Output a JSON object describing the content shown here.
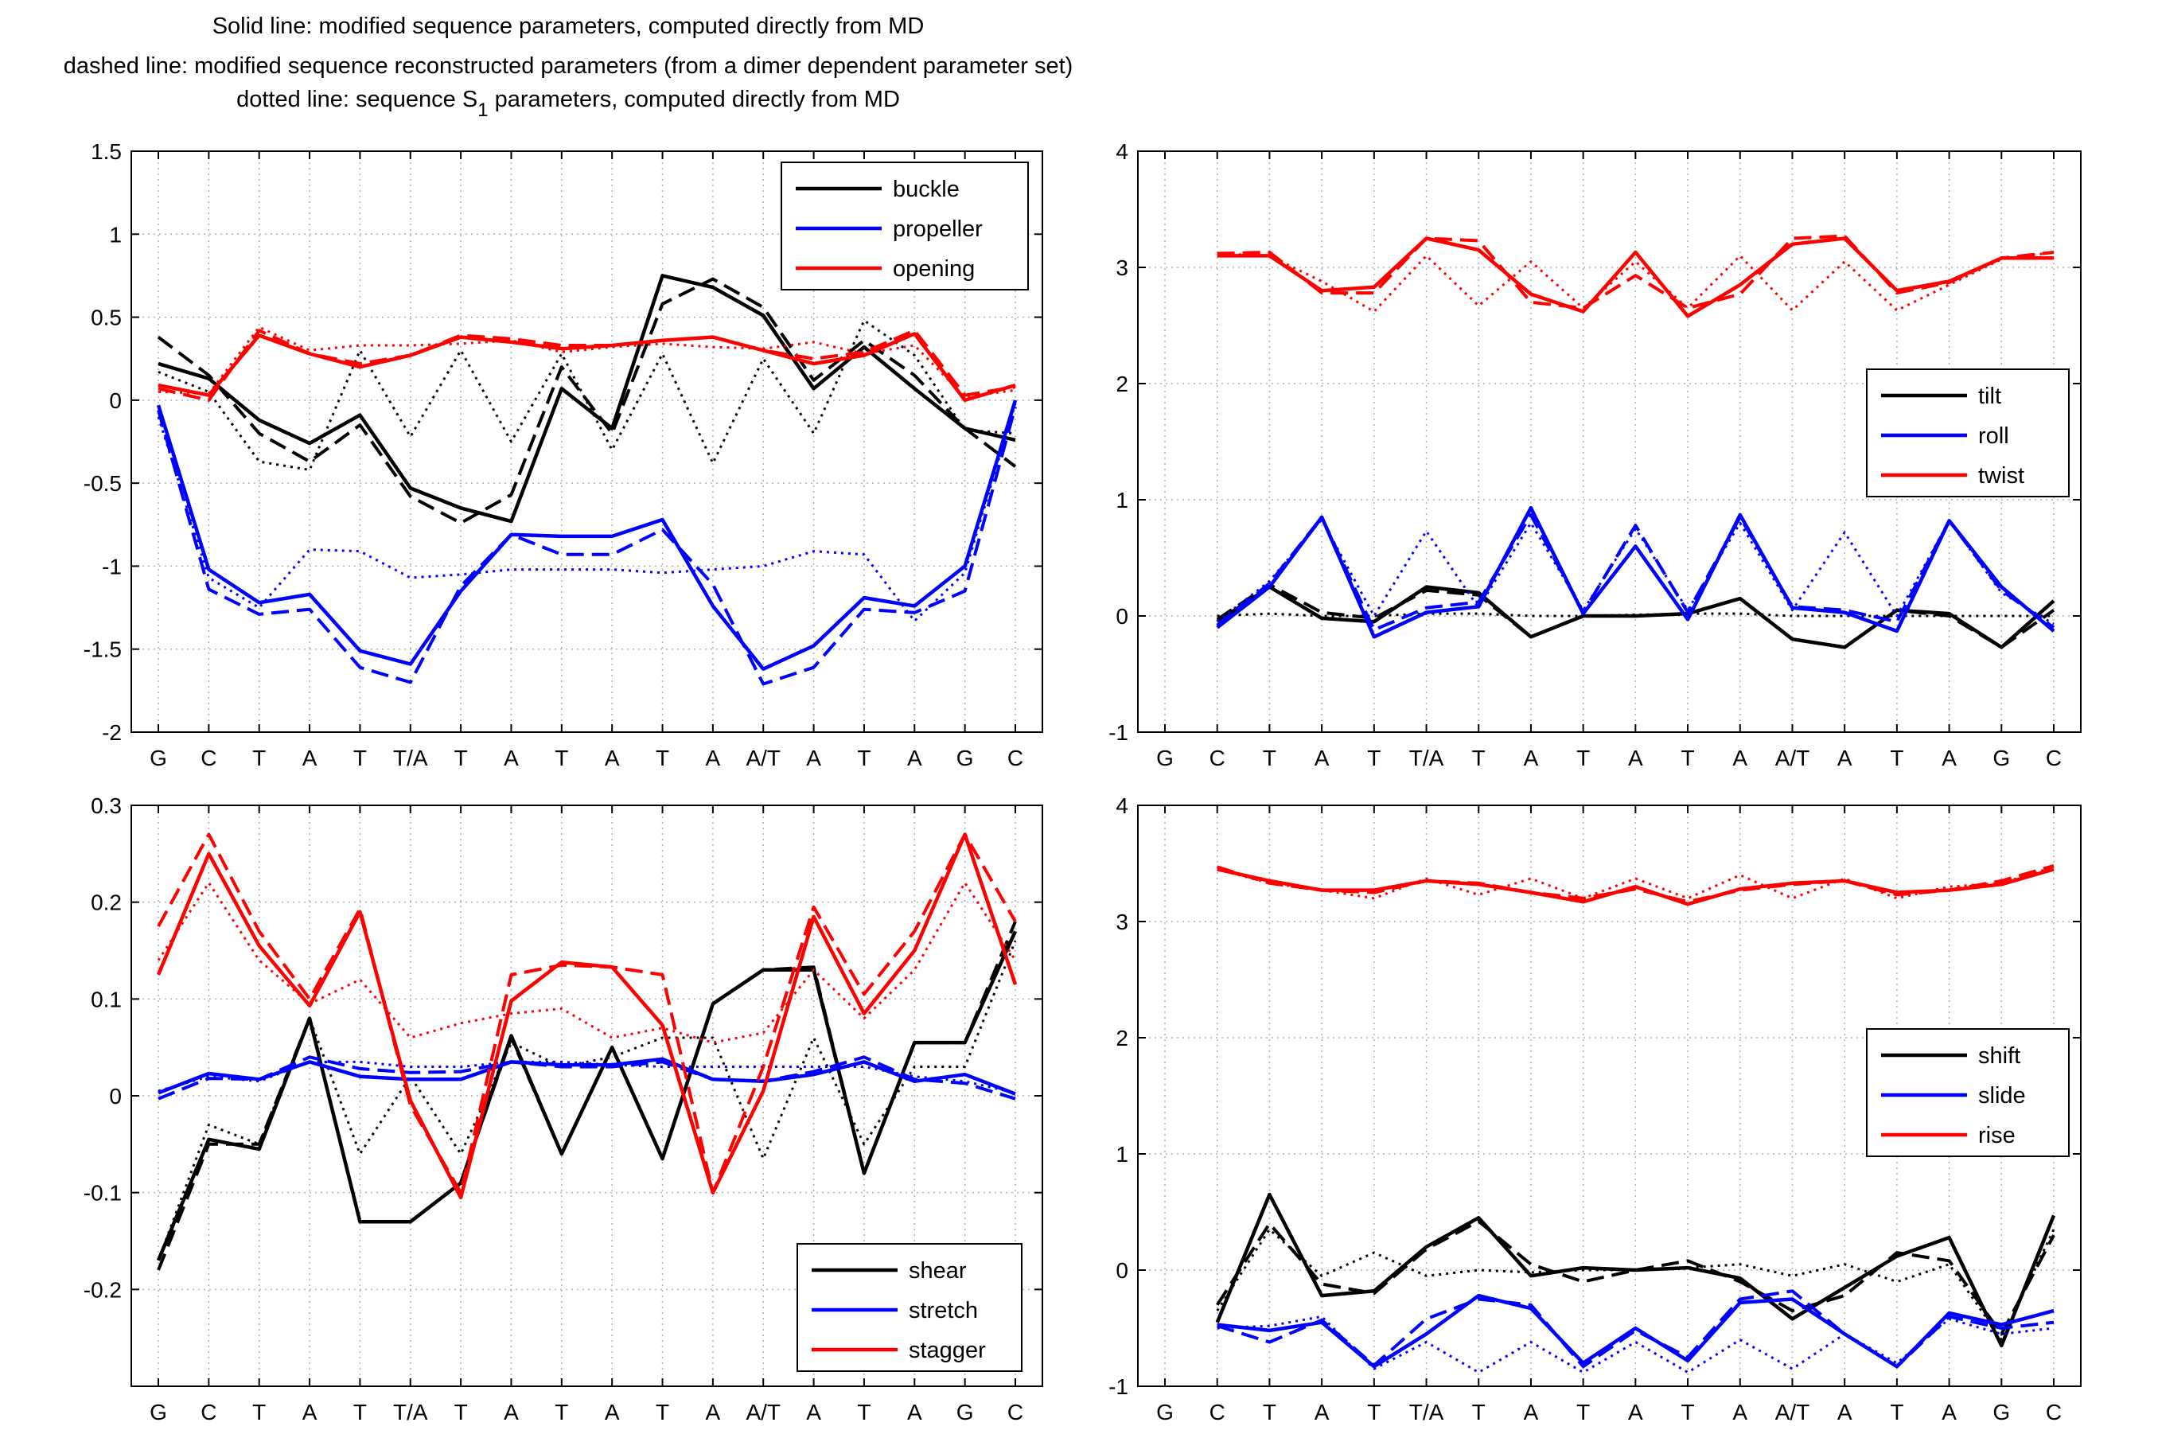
{
  "figure": {
    "title_lines": [
      "Solid line: modified sequence parameters, computed directly from MD",
      "dashed line: modified sequence reconstructed parameters (from a dimer dependent parameter set)"
    ],
    "title_line3": {
      "before": "dotted line: sequence S",
      "subscript": "1",
      "after": " parameters, computed directly from MD"
    },
    "line_styles": {
      "solid": "solid",
      "dashed": "dashed",
      "dotted": "dotted"
    }
  },
  "chart_data": [
    {
      "id": "p1",
      "type": "line",
      "categories": [
        "G",
        "C",
        "T",
        "A",
        "T",
        "T/A",
        "T",
        "A",
        "T",
        "A",
        "T",
        "A",
        "A/T",
        "A",
        "T",
        "A",
        "G",
        "C"
      ],
      "ylim": [
        -2,
        1.5
      ],
      "yticks": [
        -2,
        -1.5,
        -1,
        -0.5,
        0,
        0.5,
        1,
        1.5
      ],
      "ytick_labels": [
        "-2",
        "-1.5",
        "-1",
        "-0.5",
        "0",
        "0.5",
        "1",
        "1.5"
      ],
      "grid": true,
      "legend": "top-right",
      "series": [
        {
          "name": "buckle",
          "color": "#000000",
          "solid": [
            0.22,
            0.13,
            -0.12,
            -0.26,
            -0.09,
            -0.53,
            -0.65,
            -0.73,
            0.07,
            -0.17,
            0.75,
            0.68,
            0.51,
            0.07,
            0.32,
            0.07,
            -0.17,
            -0.24
          ],
          "dashed": [
            0.38,
            0.15,
            -0.2,
            -0.37,
            -0.15,
            -0.58,
            -0.74,
            -0.57,
            0.2,
            -0.2,
            0.58,
            0.73,
            0.56,
            0.12,
            0.36,
            0.15,
            -0.17,
            -0.4
          ],
          "dotted": [
            0.17,
            0.05,
            -0.37,
            -0.42,
            0.3,
            -0.22,
            0.3,
            -0.25,
            0.28,
            -0.3,
            0.28,
            -0.38,
            0.25,
            -0.2,
            0.48,
            0.27,
            -0.18,
            -0.2
          ]
        },
        {
          "name": "propeller",
          "color": "#0000ff",
          "solid": [
            -0.03,
            -1.02,
            -1.22,
            -1.17,
            -1.51,
            -1.59,
            -1.15,
            -0.81,
            -0.82,
            -0.82,
            -0.72,
            -1.24,
            -1.62,
            -1.48,
            -1.19,
            -1.24,
            -1.0,
            0.0
          ],
          "dashed": [
            -0.06,
            -1.14,
            -1.29,
            -1.26,
            -1.61,
            -1.7,
            -1.12,
            -0.81,
            -0.93,
            -0.93,
            -0.78,
            -1.11,
            -1.71,
            -1.61,
            -1.26,
            -1.28,
            -1.15,
            -0.04
          ],
          "dotted": [
            -0.1,
            -1.07,
            -1.25,
            -0.9,
            -0.91,
            -1.07,
            -1.05,
            -1.02,
            -1.02,
            -1.02,
            -1.04,
            -1.02,
            -1.0,
            -0.91,
            -0.93,
            -1.33,
            -1.04,
            -0.02
          ]
        },
        {
          "name": "opening",
          "color": "#ff0000",
          "solid": [
            0.09,
            0.03,
            0.39,
            0.28,
            0.2,
            0.27,
            0.38,
            0.35,
            0.31,
            0.33,
            0.36,
            0.38,
            0.3,
            0.22,
            0.27,
            0.4,
            0.0,
            0.09
          ],
          "dashed": [
            0.07,
            0.0,
            0.42,
            0.28,
            0.22,
            0.27,
            0.39,
            0.37,
            0.33,
            0.33,
            0.36,
            0.38,
            0.3,
            0.25,
            0.29,
            0.42,
            0.03,
            0.08
          ],
          "dotted": [
            0.05,
            0.04,
            0.44,
            0.3,
            0.33,
            0.33,
            0.34,
            0.36,
            0.29,
            0.32,
            0.34,
            0.32,
            0.31,
            0.35,
            0.28,
            0.33,
            0.02,
            0.06
          ]
        }
      ]
    },
    {
      "id": "p2",
      "type": "line",
      "categories": [
        "G",
        "C",
        "T",
        "A",
        "T",
        "T/A",
        "T",
        "A",
        "T",
        "A",
        "T",
        "A",
        "A/T",
        "A",
        "T",
        "A",
        "G",
        "C"
      ],
      "ylim": [
        -1,
        4
      ],
      "yticks": [
        -1,
        0,
        1,
        2,
        3,
        4
      ],
      "ytick_labels": [
        "-1",
        "0",
        "1",
        "2",
        "3",
        "4"
      ],
      "grid": true,
      "legend": "middle-right",
      "series": [
        {
          "name": "tilt",
          "color": "#000000",
          "solid": [
            null,
            -0.05,
            0.25,
            -0.02,
            -0.05,
            0.25,
            0.2,
            -0.18,
            0.0,
            0.0,
            0.02,
            0.15,
            -0.2,
            -0.27,
            0.05,
            0.02,
            -0.27,
            0.13
          ],
          "dashed": [
            null,
            -0.03,
            0.27,
            0.03,
            -0.02,
            0.22,
            0.18,
            -0.18,
            0.0,
            0.0,
            0.02,
            0.15,
            -0.2,
            -0.27,
            0.05,
            0.0,
            -0.27,
            0.05
          ],
          "dotted": [
            null,
            0.0,
            0.02,
            0.0,
            0.0,
            0.02,
            0.02,
            0.0,
            0.0,
            0.01,
            0.02,
            0.02,
            0.0,
            0.0,
            0.0,
            0.0,
            0.0,
            0.0
          ]
        },
        {
          "name": "roll",
          "color": "#0000ff",
          "solid": [
            null,
            -0.1,
            0.25,
            0.85,
            -0.18,
            0.03,
            0.08,
            0.93,
            0.02,
            0.6,
            -0.03,
            0.87,
            0.07,
            0.03,
            -0.13,
            0.82,
            0.25,
            -0.13
          ],
          "dashed": [
            null,
            -0.08,
            0.28,
            0.85,
            -0.12,
            0.07,
            0.12,
            0.87,
            0.03,
            0.78,
            0.03,
            0.85,
            0.08,
            0.05,
            -0.05,
            0.82,
            0.22,
            -0.1
          ],
          "dotted": [
            null,
            -0.05,
            0.3,
            0.83,
            0.0,
            0.73,
            0.07,
            0.8,
            0.05,
            0.75,
            0.05,
            0.8,
            0.05,
            0.72,
            0.0,
            0.82,
            0.2,
            -0.07
          ]
        },
        {
          "name": "twist",
          "color": "#ff0000",
          "solid": [
            null,
            3.1,
            3.1,
            2.8,
            2.83,
            3.25,
            3.15,
            2.77,
            2.62,
            3.13,
            2.58,
            2.85,
            3.2,
            3.25,
            2.8,
            2.88,
            3.08,
            3.08
          ],
          "dashed": [
            null,
            3.12,
            3.13,
            2.78,
            2.78,
            3.25,
            3.23,
            2.7,
            2.65,
            2.93,
            2.65,
            2.77,
            3.25,
            3.27,
            2.78,
            2.87,
            3.08,
            3.13
          ],
          "dotted": [
            null,
            3.12,
            3.1,
            2.88,
            2.62,
            3.1,
            2.67,
            3.05,
            2.65,
            3.05,
            2.65,
            3.1,
            2.63,
            3.05,
            2.63,
            2.85,
            3.07,
            3.13
          ]
        }
      ]
    },
    {
      "id": "p3",
      "type": "line",
      "categories": [
        "G",
        "C",
        "T",
        "A",
        "T",
        "T/A",
        "T",
        "A",
        "T",
        "A",
        "T",
        "A",
        "A/T",
        "A",
        "T",
        "A",
        "G",
        "C"
      ],
      "ylim": [
        -0.3,
        0.3
      ],
      "yticks": [
        -0.2,
        -0.1,
        0,
        0.1,
        0.2,
        0.3
      ],
      "ytick_labels": [
        "-0.2",
        "-0.1",
        "0",
        "0.1",
        "0.2",
        "0.3"
      ],
      "grid": true,
      "legend": "bottom-right",
      "series": [
        {
          "name": "shear",
          "color": "#000000",
          "solid": [
            -0.17,
            -0.045,
            -0.055,
            0.08,
            -0.13,
            -0.13,
            -0.09,
            0.062,
            -0.06,
            0.05,
            -0.065,
            0.095,
            0.13,
            0.13,
            -0.08,
            0.055,
            0.055,
            0.17
          ],
          "dashed": [
            -0.18,
            -0.05,
            -0.05,
            0.08,
            -0.13,
            -0.13,
            -0.09,
            0.06,
            -0.06,
            0.05,
            -0.065,
            0.095,
            0.13,
            0.133,
            -0.08,
            0.055,
            0.055,
            0.18
          ],
          "dotted": [
            -0.17,
            -0.03,
            -0.05,
            0.08,
            -0.06,
            0.02,
            -0.06,
            0.055,
            0.03,
            0.04,
            0.06,
            0.06,
            -0.065,
            0.06,
            -0.05,
            0.03,
            0.03,
            0.16
          ]
        },
        {
          "name": "stretch",
          "color": "#0000ff",
          "solid": [
            0.003,
            0.023,
            0.017,
            0.035,
            0.02,
            0.017,
            0.017,
            0.035,
            0.032,
            0.032,
            0.038,
            0.017,
            0.015,
            0.022,
            0.035,
            0.015,
            0.022,
            0.002
          ],
          "dashed": [
            -0.003,
            0.018,
            0.017,
            0.04,
            0.028,
            0.024,
            0.025,
            0.035,
            0.03,
            0.03,
            0.035,
            0.017,
            0.015,
            0.025,
            0.04,
            0.017,
            0.013,
            -0.003
          ],
          "dotted": [
            0.005,
            0.02,
            0.015,
            0.035,
            0.035,
            0.03,
            0.03,
            0.035,
            0.035,
            0.032,
            0.03,
            0.03,
            0.03,
            0.03,
            0.03,
            0.02,
            0.015,
            0.003
          ]
        },
        {
          "name": "stagger",
          "color": "#ff0000",
          "solid": [
            0.125,
            0.25,
            0.155,
            0.093,
            0.19,
            -0.005,
            -0.105,
            0.098,
            0.138,
            0.133,
            0.073,
            -0.1,
            0.005,
            0.185,
            0.085,
            0.15,
            0.27,
            0.115
          ],
          "dashed": [
            0.175,
            0.27,
            0.17,
            0.1,
            0.193,
            -0.01,
            -0.1,
            0.125,
            0.135,
            0.133,
            0.125,
            -0.1,
            0.03,
            0.195,
            0.105,
            0.17,
            0.27,
            0.18
          ],
          "dotted": [
            0.14,
            0.22,
            0.14,
            0.095,
            0.12,
            0.06,
            0.075,
            0.085,
            0.09,
            0.06,
            0.07,
            0.055,
            0.065,
            0.13,
            0.08,
            0.13,
            0.22,
            0.14
          ]
        }
      ]
    },
    {
      "id": "p4",
      "type": "line",
      "categories": [
        "G",
        "C",
        "T",
        "A",
        "T",
        "T/A",
        "T",
        "A",
        "T",
        "A",
        "T",
        "A",
        "A/T",
        "A",
        "T",
        "A",
        "G",
        "C"
      ],
      "ylim": [
        -1,
        4
      ],
      "yticks": [
        -1,
        0,
        1,
        2,
        3,
        4
      ],
      "ytick_labels": [
        "-1",
        "0",
        "1",
        "2",
        "3",
        "4"
      ],
      "grid": true,
      "legend": "middle-right",
      "series": [
        {
          "name": "shift",
          "color": "#000000",
          "solid": [
            null,
            -0.45,
            0.65,
            -0.22,
            -0.18,
            0.2,
            0.45,
            -0.05,
            0.02,
            0.0,
            0.02,
            -0.07,
            -0.42,
            -0.15,
            0.12,
            0.28,
            -0.65,
            0.47
          ],
          "dashed": [
            null,
            -0.3,
            0.4,
            -0.12,
            -0.2,
            0.18,
            0.42,
            0.05,
            -0.1,
            0.0,
            0.08,
            -0.1,
            -0.35,
            -0.22,
            0.15,
            0.08,
            -0.55,
            0.3
          ],
          "dotted": [
            null,
            -0.35,
            0.35,
            -0.05,
            0.15,
            -0.05,
            0.0,
            -0.02,
            0.0,
            0.0,
            0.02,
            0.05,
            -0.05,
            0.05,
            -0.1,
            0.05,
            -0.6,
            0.35
          ]
        },
        {
          "name": "slide",
          "color": "#0000ff",
          "solid": [
            null,
            -0.47,
            -0.52,
            -0.45,
            -0.83,
            -0.55,
            -0.22,
            -0.33,
            -0.8,
            -0.5,
            -0.78,
            -0.28,
            -0.25,
            -0.55,
            -0.83,
            -0.37,
            -0.47,
            -0.35
          ],
          "dashed": [
            null,
            -0.48,
            -0.62,
            -0.43,
            -0.82,
            -0.42,
            -0.25,
            -0.3,
            -0.83,
            -0.52,
            -0.75,
            -0.25,
            -0.18,
            -0.55,
            -0.83,
            -0.4,
            -0.5,
            -0.45
          ],
          "dotted": [
            null,
            -0.5,
            -0.48,
            -0.4,
            -0.85,
            -0.62,
            -0.88,
            -0.62,
            -0.88,
            -0.62,
            -0.88,
            -0.6,
            -0.85,
            -0.55,
            -0.8,
            -0.42,
            -0.55,
            -0.5
          ]
        },
        {
          "name": "rise",
          "color": "#ff0000",
          "solid": [
            null,
            3.45,
            3.35,
            3.27,
            3.27,
            3.35,
            3.32,
            3.25,
            3.17,
            3.3,
            3.15,
            3.28,
            3.33,
            3.35,
            3.25,
            3.27,
            3.32,
            3.45
          ],
          "dashed": [
            null,
            3.47,
            3.33,
            3.27,
            3.25,
            3.35,
            3.33,
            3.25,
            3.2,
            3.28,
            3.17,
            3.27,
            3.32,
            3.35,
            3.23,
            3.27,
            3.35,
            3.48
          ],
          "dotted": [
            null,
            3.45,
            3.33,
            3.27,
            3.2,
            3.37,
            3.23,
            3.37,
            3.2,
            3.37,
            3.2,
            3.4,
            3.2,
            3.37,
            3.2,
            3.3,
            3.33,
            3.47
          ]
        }
      ]
    }
  ]
}
